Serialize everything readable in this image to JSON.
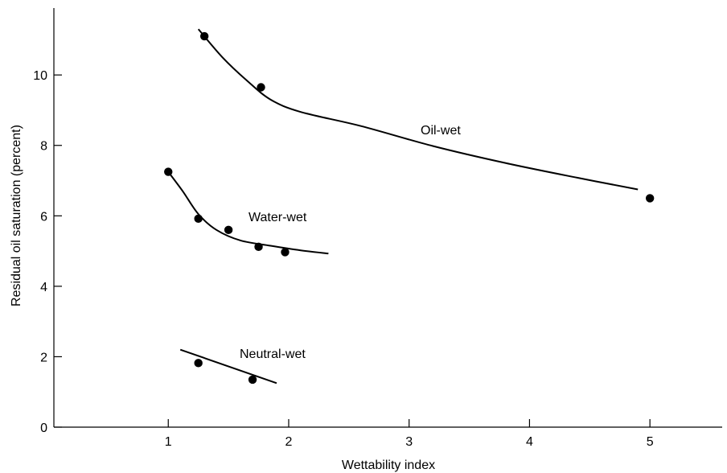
{
  "chart_data": {
    "type": "scatter",
    "xlabel": "Wettability index",
    "ylabel": "Residual oil saturation (percent)",
    "xlim": [
      0.05,
      5.6
    ],
    "ylim": [
      0,
      11.9
    ],
    "xticks": [
      1,
      2,
      3,
      4,
      5
    ],
    "yticks": [
      0,
      2,
      4,
      6,
      8,
      10
    ],
    "xtick_labels": [
      "1",
      "2",
      "3",
      "4",
      "5"
    ],
    "ytick_labels": [
      "0",
      "2",
      "4",
      "6",
      "8",
      "10"
    ],
    "grid": false,
    "legend": "none",
    "series": [
      {
        "name": "Oil-wet",
        "points": [
          [
            1.3,
            11.1
          ],
          [
            1.77,
            9.65
          ],
          [
            5.0,
            6.5
          ]
        ],
        "curve": [
          [
            1.25,
            11.3
          ],
          [
            1.45,
            10.5
          ],
          [
            1.65,
            9.85
          ],
          [
            1.85,
            9.3
          ],
          [
            2.1,
            8.95
          ],
          [
            2.6,
            8.55
          ],
          [
            3.2,
            7.98
          ],
          [
            3.8,
            7.5
          ],
          [
            4.4,
            7.08
          ],
          [
            4.9,
            6.75
          ]
        ]
      },
      {
        "name": "Water-wet",
        "points": [
          [
            1.0,
            7.25
          ],
          [
            1.25,
            5.92
          ],
          [
            1.5,
            5.6
          ],
          [
            1.75,
            5.12
          ],
          [
            1.97,
            4.97
          ]
        ],
        "curve": [
          [
            1.0,
            7.25
          ],
          [
            1.12,
            6.7
          ],
          [
            1.25,
            6.05
          ],
          [
            1.4,
            5.6
          ],
          [
            1.6,
            5.3
          ],
          [
            1.85,
            5.15
          ],
          [
            2.1,
            5.02
          ],
          [
            2.33,
            4.93
          ]
        ]
      },
      {
        "name": "Neutral-wet",
        "points": [
          [
            1.25,
            1.82
          ],
          [
            1.7,
            1.35
          ]
        ],
        "curve": [
          [
            1.1,
            2.2
          ],
          [
            1.9,
            1.25
          ]
        ]
      }
    ]
  }
}
